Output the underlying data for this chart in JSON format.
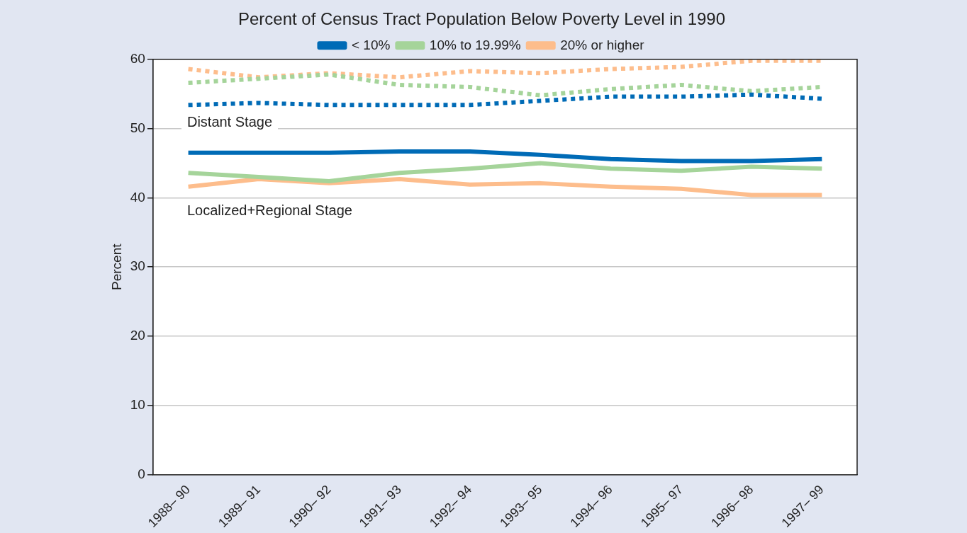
{
  "chart_data": {
    "type": "line",
    "title": "Percent of Census Tract Population Below Poverty Level in 1990",
    "ylabel": "Percent",
    "categories": [
      "1988– 90",
      "1989– 91",
      "1990– 92",
      "1991– 93",
      "1992– 94",
      "1993– 95",
      "1994– 96",
      "1995– 97",
      "1996– 98",
      "1997– 99"
    ],
    "series": [
      {
        "name": "< 10%",
        "color": "#006bb6",
        "line_style": "solid",
        "values": [
          46.5,
          46.5,
          46.5,
          46.7,
          46.7,
          46.2,
          45.6,
          45.3,
          45.3,
          45.6
        ]
      },
      {
        "name": "10% to 19.99%",
        "color": "#a5d49a",
        "line_style": "solid",
        "values": [
          43.6,
          43.0,
          42.4,
          43.6,
          44.2,
          45.0,
          44.2,
          43.9,
          44.5,
          44.2
        ]
      },
      {
        "name": "20% or higher",
        "color": "#fdbd8c",
        "line_style": "solid",
        "values": [
          41.6,
          42.7,
          42.1,
          42.7,
          41.9,
          42.1,
          41.6,
          41.3,
          40.4,
          40.4
        ]
      },
      {
        "color": "#006bb6",
        "line_style": "dotted",
        "values": [
          53.4,
          53.7,
          53.4,
          53.4,
          53.4,
          54.0,
          54.6,
          54.6,
          54.9,
          54.3
        ]
      },
      {
        "color": "#a5d49a",
        "line_style": "dotted",
        "values": [
          56.6,
          57.2,
          57.8,
          56.3,
          56.0,
          54.8,
          55.7,
          56.3,
          55.4,
          56.0
        ]
      },
      {
        "color": "#fdbd8c",
        "line_style": "dotted",
        "values": [
          58.6,
          57.4,
          58.0,
          57.4,
          58.3,
          58.0,
          58.6,
          58.9,
          59.8,
          59.8
        ]
      }
    ],
    "annotations": [
      "Distant Stage",
      "Localized+Regional Stage"
    ],
    "ylim": [
      0,
      60
    ],
    "yticks": [
      0,
      10,
      20,
      30,
      40,
      50,
      60
    ],
    "grid": "y",
    "legend": "top",
    "marker": "none"
  }
}
